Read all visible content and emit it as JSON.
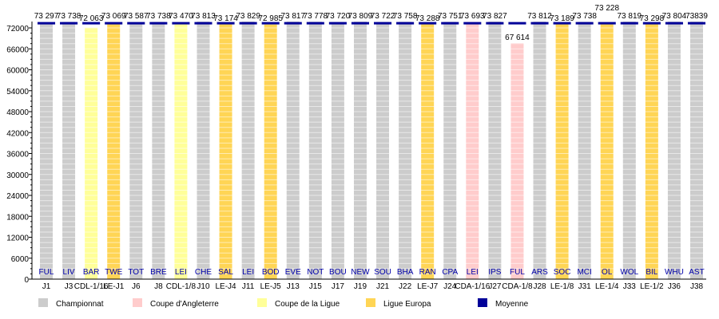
{
  "chart_data": {
    "type": "bar",
    "title": "",
    "xlabel": "",
    "ylabel": "",
    "ylim": [
      0,
      73500
    ],
    "yticks": [
      0,
      6000,
      12000,
      18000,
      24000,
      30000,
      36000,
      42000,
      48000,
      54000,
      60000,
      66000,
      72000
    ],
    "grid": true,
    "legend_placement": "bottom",
    "colors": {
      "Championnat": "#cccccc",
      "Coupe d'Angleterre": "#ffcccc",
      "Coupe de la Ligue": "#ffff99",
      "Ligue Europa": "#ffd555",
      "Moyenne": "#000099"
    },
    "legend": [
      "Championnat",
      "Coupe d'Angleterre",
      "Coupe de la Ligue",
      "Ligue Europa",
      "Moyenne"
    ],
    "categories": [
      "J1",
      "J3",
      "CDL-1/16",
      "LE-J1",
      "J6",
      "J8",
      "CDL-1/8",
      "J10",
      "LE-J4",
      "J11",
      "LE-J5",
      "J13",
      "J15",
      "J17",
      "J19",
      "J21",
      "J22",
      "LE-J7",
      "J24",
      "CDA-1/16",
      "J27",
      "CDA-1/8",
      "J28",
      "LE-1/8",
      "J31",
      "LE-1/4",
      "J33",
      "LE-1/2",
      "J36",
      "J38"
    ],
    "opponents": [
      "FUL",
      "LIV",
      "BAR",
      "TWE",
      "TOT",
      "BRE",
      "LEI",
      "CHE",
      "SAL",
      "LEI",
      "BOD",
      "EVE",
      "NOT",
      "BOU",
      "NEW",
      "SOU",
      "BHA",
      "RAN",
      "CPA",
      "LEI",
      "IPS",
      "FUL",
      "ARS",
      "SOC",
      "MCI",
      "OL",
      "WOL",
      "BIL",
      "WHU",
      "AST"
    ],
    "competition": [
      "Championnat",
      "Championnat",
      "Coupe de la Ligue",
      "Ligue Europa",
      "Championnat",
      "Championnat",
      "Coupe de la Ligue",
      "Championnat",
      "Ligue Europa",
      "Championnat",
      "Ligue Europa",
      "Championnat",
      "Championnat",
      "Championnat",
      "Championnat",
      "Championnat",
      "Championnat",
      "Ligue Europa",
      "Championnat",
      "Coupe d'Angleterre",
      "Championnat",
      "Coupe d'Angleterre",
      "Championnat",
      "Ligue Europa",
      "Championnat",
      "Ligue Europa",
      "Championnat",
      "Ligue Europa",
      "Championnat",
      "Championnat"
    ],
    "values": [
      73297,
      73738,
      72063,
      73069,
      73587,
      73738,
      73470,
      73813,
      73174,
      73829,
      72985,
      73817,
      73778,
      73720,
      73809,
      73722,
      73758,
      73288,
      73751,
      73693,
      73827,
      67614,
      73812,
      73189,
      73738,
      73228,
      73819,
      73298,
      73804,
      73839
    ],
    "value_labels": [
      "73 297",
      "73 738",
      "72 063",
      "73 069",
      "73 587",
      "73 738",
      "73 470",
      "73 813",
      "73 174",
      "73 829",
      "72 985",
      "73 817",
      "73 778",
      "73 720",
      "73 809",
      "73 722",
      "73 758",
      "73 288",
      "73 751",
      "73 693",
      "73 827",
      "67 614",
      "73 812",
      "73 189",
      "73 738",
      "73 228",
      "73 819",
      "73 298",
      "73 804",
      "73839"
    ]
  }
}
